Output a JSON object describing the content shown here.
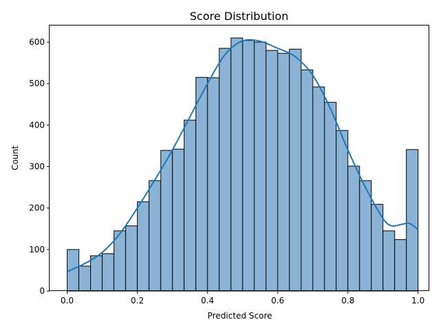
{
  "chart_data": {
    "type": "bar",
    "title": "Score Distribution",
    "xlabel": "Predicted Score",
    "ylabel": "Count",
    "xlim": [
      -0.05,
      1.03
    ],
    "ylim": [
      0,
      640
    ],
    "bin_edges": [
      0.0,
      0.0333,
      0.0667,
      0.1,
      0.1333,
      0.1667,
      0.2,
      0.2333,
      0.2667,
      0.3,
      0.3333,
      0.3667,
      0.4,
      0.4333,
      0.4667,
      0.5,
      0.5333,
      0.5667,
      0.6,
      0.6333,
      0.6667,
      0.7,
      0.7333,
      0.7667,
      0.8,
      0.8333,
      0.8667,
      0.9,
      0.9333,
      0.9667,
      1.0
    ],
    "values": [
      100,
      60,
      85,
      90,
      145,
      157,
      215,
      266,
      339,
      342,
      412,
      515,
      514,
      585,
      610,
      604,
      600,
      580,
      573,
      583,
      533,
      492,
      455,
      387,
      301,
      266,
      209,
      145,
      124,
      341
    ],
    "kde_x": [
      0.0,
      0.05,
      0.1,
      0.15,
      0.2,
      0.25,
      0.3,
      0.35,
      0.4,
      0.45,
      0.5,
      0.55,
      0.6,
      0.65,
      0.7,
      0.75,
      0.8,
      0.85,
      0.9,
      0.925,
      0.95,
      0.975,
      1.0
    ],
    "kde_y": [
      47,
      66,
      93,
      138,
      200,
      268,
      340,
      420,
      500,
      570,
      603,
      602,
      585,
      565,
      520,
      440,
      340,
      250,
      175,
      157,
      160,
      163,
      148
    ],
    "xticks": [
      "0.0",
      "0.2",
      "0.4",
      "0.6",
      "0.8",
      "1.0"
    ],
    "yticks": [
      "0",
      "100",
      "200",
      "300",
      "400",
      "500",
      "600"
    ],
    "xtick_values": [
      0.0,
      0.2,
      0.4,
      0.6,
      0.8,
      1.0
    ],
    "ytick_values": [
      0,
      100,
      200,
      300,
      400,
      500,
      600
    ],
    "bar_color": "#8ab3d5",
    "line_color": "#1f77b4",
    "grid": false
  }
}
